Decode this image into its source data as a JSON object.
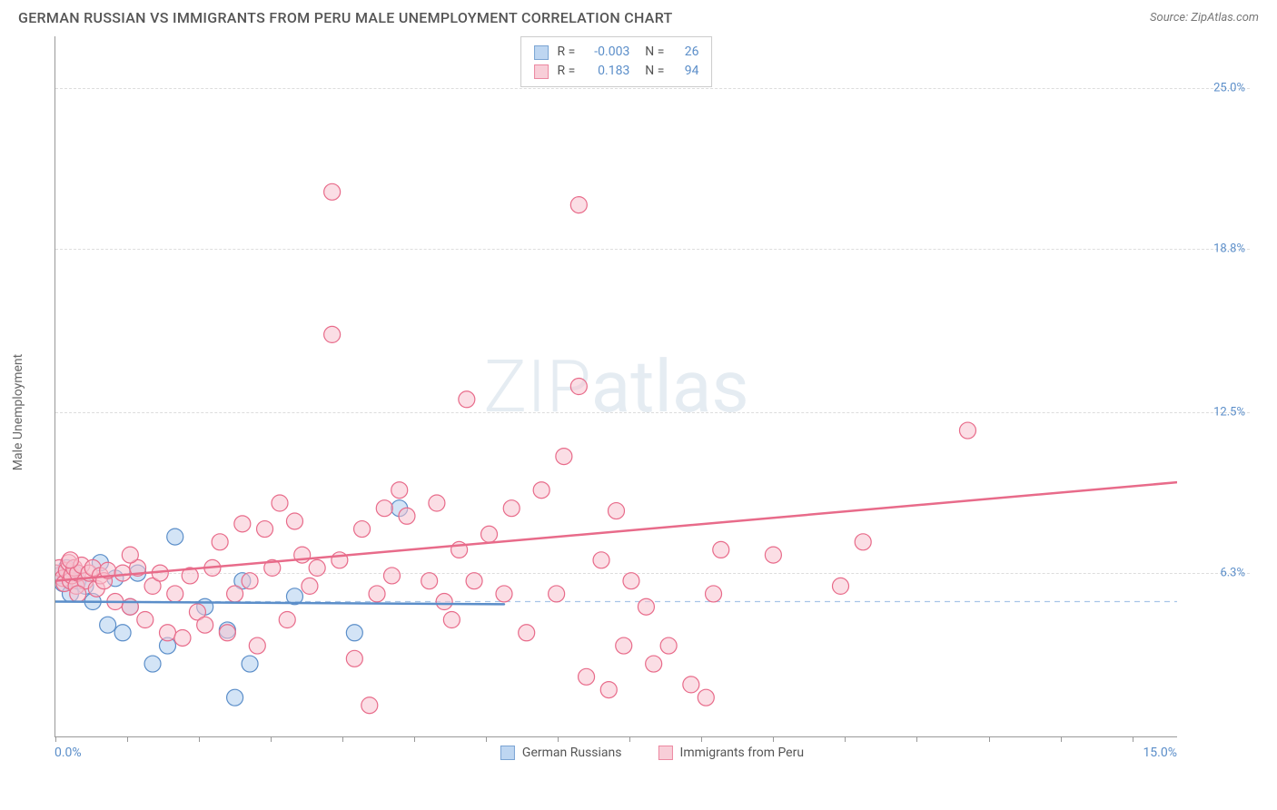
{
  "title": "GERMAN RUSSIAN VS IMMIGRANTS FROM PERU MALE UNEMPLOYMENT CORRELATION CHART",
  "source_label": "Source: ZipAtlas.com",
  "y_axis_label": "Male Unemployment",
  "watermark_text": "ZIPatlas",
  "chart": {
    "type": "scatter",
    "xlim": [
      0,
      15
    ],
    "ylim": [
      0,
      27
    ],
    "x_tick_labels": [
      "0.0%",
      "15.0%"
    ],
    "y_ticks": [
      {
        "value": 6.3,
        "label": "6.3%"
      },
      {
        "value": 12.5,
        "label": "12.5%"
      },
      {
        "value": 18.8,
        "label": "18.8%"
      },
      {
        "value": 25.0,
        "label": "25.0%"
      }
    ],
    "x_tick_positions_pct": [
      0,
      6.4,
      12.8,
      19.2,
      25.6,
      32.0,
      38.4,
      44.8,
      51.2,
      57.6,
      64.0,
      70.4,
      76.8,
      83.2,
      89.6,
      96.0
    ],
    "background_color": "#ffffff",
    "grid_color": "#dddddd",
    "ref_line_color": "#a7c5e8",
    "reference_hline_y": 5.2,
    "series": [
      {
        "name": "German Russians",
        "label": "German Russians",
        "fill_color": "#aecdee",
        "stroke_color": "#5b8ec9",
        "fill_opacity": 0.55,
        "marker_radius": 9,
        "correlation_R": "-0.003",
        "sample_N": "26",
        "trend_line": {
          "x1": 0.0,
          "y1": 5.2,
          "x2": 6.0,
          "y2": 5.1,
          "width": 2.5
        },
        "points": [
          [
            0.0,
            6.3
          ],
          [
            0.05,
            6.2
          ],
          [
            0.1,
            5.9
          ],
          [
            0.15,
            6.5
          ],
          [
            0.2,
            5.5
          ],
          [
            0.25,
            6.3
          ],
          [
            0.3,
            6.0
          ],
          [
            0.4,
            5.8
          ],
          [
            0.5,
            5.2
          ],
          [
            0.6,
            6.7
          ],
          [
            0.7,
            4.3
          ],
          [
            0.8,
            6.1
          ],
          [
            0.9,
            4.0
          ],
          [
            1.0,
            5.0
          ],
          [
            1.1,
            6.3
          ],
          [
            1.3,
            2.8
          ],
          [
            1.5,
            3.5
          ],
          [
            1.6,
            7.7
          ],
          [
            2.0,
            5.0
          ],
          [
            2.3,
            4.1
          ],
          [
            2.4,
            1.5
          ],
          [
            2.5,
            6.0
          ],
          [
            2.6,
            2.8
          ],
          [
            3.2,
            5.4
          ],
          [
            4.0,
            4.0
          ],
          [
            4.6,
            8.8
          ]
        ]
      },
      {
        "name": "Immigrants from Peru",
        "label": "Immigrants from Peru",
        "fill_color": "#f7c3cf",
        "stroke_color": "#e86b8a",
        "fill_opacity": 0.55,
        "marker_radius": 9,
        "correlation_R": "0.183",
        "sample_N": "94",
        "trend_line": {
          "x1": 0.0,
          "y1": 6.0,
          "x2": 15.0,
          "y2": 9.8,
          "width": 2.5
        },
        "points": [
          [
            0.0,
            6.3
          ],
          [
            0.05,
            6.5
          ],
          [
            0.1,
            6.1
          ],
          [
            0.12,
            5.9
          ],
          [
            0.15,
            6.4
          ],
          [
            0.18,
            6.7
          ],
          [
            0.2,
            6.0
          ],
          [
            0.22,
            6.2
          ],
          [
            0.25,
            6.5
          ],
          [
            0.28,
            5.8
          ],
          [
            0.3,
            6.3
          ],
          [
            0.35,
            6.6
          ],
          [
            0.4,
            6.0
          ],
          [
            0.45,
            6.3
          ],
          [
            0.5,
            6.5
          ],
          [
            0.55,
            5.7
          ],
          [
            0.6,
            6.2
          ],
          [
            0.65,
            6.0
          ],
          [
            0.7,
            6.4
          ],
          [
            0.8,
            5.2
          ],
          [
            0.9,
            6.3
          ],
          [
            1.0,
            5.0
          ],
          [
            1.1,
            6.5
          ],
          [
            1.2,
            4.5
          ],
          [
            1.3,
            5.8
          ],
          [
            1.4,
            6.3
          ],
          [
            1.5,
            4.0
          ],
          [
            1.6,
            5.5
          ],
          [
            1.7,
            3.8
          ],
          [
            1.8,
            6.2
          ],
          [
            1.9,
            4.8
          ],
          [
            2.0,
            4.3
          ],
          [
            2.1,
            6.5
          ],
          [
            2.2,
            7.5
          ],
          [
            2.3,
            4.0
          ],
          [
            2.4,
            5.5
          ],
          [
            2.5,
            8.2
          ],
          [
            2.6,
            6.0
          ],
          [
            2.7,
            3.5
          ],
          [
            2.8,
            8.0
          ],
          [
            2.9,
            6.5
          ],
          [
            3.0,
            9.0
          ],
          [
            3.1,
            4.5
          ],
          [
            3.2,
            8.3
          ],
          [
            3.3,
            7.0
          ],
          [
            3.4,
            5.8
          ],
          [
            3.5,
            6.5
          ],
          [
            3.7,
            15.5
          ],
          [
            3.7,
            21.0
          ],
          [
            3.8,
            6.8
          ],
          [
            4.0,
            3.0
          ],
          [
            4.1,
            8.0
          ],
          [
            4.2,
            1.2
          ],
          [
            4.3,
            5.5
          ],
          [
            4.4,
            8.8
          ],
          [
            4.5,
            6.2
          ],
          [
            4.6,
            9.5
          ],
          [
            4.7,
            8.5
          ],
          [
            5.0,
            6.0
          ],
          [
            5.1,
            9.0
          ],
          [
            5.2,
            5.2
          ],
          [
            5.3,
            4.5
          ],
          [
            5.4,
            7.2
          ],
          [
            5.5,
            13.0
          ],
          [
            5.6,
            6.0
          ],
          [
            5.8,
            7.8
          ],
          [
            6.0,
            5.5
          ],
          [
            6.1,
            8.8
          ],
          [
            6.3,
            4.0
          ],
          [
            6.5,
            9.5
          ],
          [
            6.7,
            5.5
          ],
          [
            6.8,
            10.8
          ],
          [
            7.0,
            20.5
          ],
          [
            7.0,
            13.5
          ],
          [
            7.1,
            2.3
          ],
          [
            7.3,
            6.8
          ],
          [
            7.4,
            1.8
          ],
          [
            7.5,
            8.7
          ],
          [
            7.6,
            3.5
          ],
          [
            7.7,
            6.0
          ],
          [
            7.9,
            5.0
          ],
          [
            8.0,
            2.8
          ],
          [
            8.2,
            3.5
          ],
          [
            8.5,
            2.0
          ],
          [
            8.7,
            1.5
          ],
          [
            8.8,
            5.5
          ],
          [
            8.9,
            7.2
          ],
          [
            9.6,
            7.0
          ],
          [
            10.5,
            5.8
          ],
          [
            10.8,
            7.5
          ],
          [
            12.2,
            11.8
          ],
          [
            0.2,
            6.8
          ],
          [
            0.3,
            5.5
          ],
          [
            1.0,
            7.0
          ]
        ]
      }
    ]
  },
  "colors": {
    "title_color": "#555555",
    "axis_color": "#999999",
    "value_color": "#5b8ec9"
  }
}
